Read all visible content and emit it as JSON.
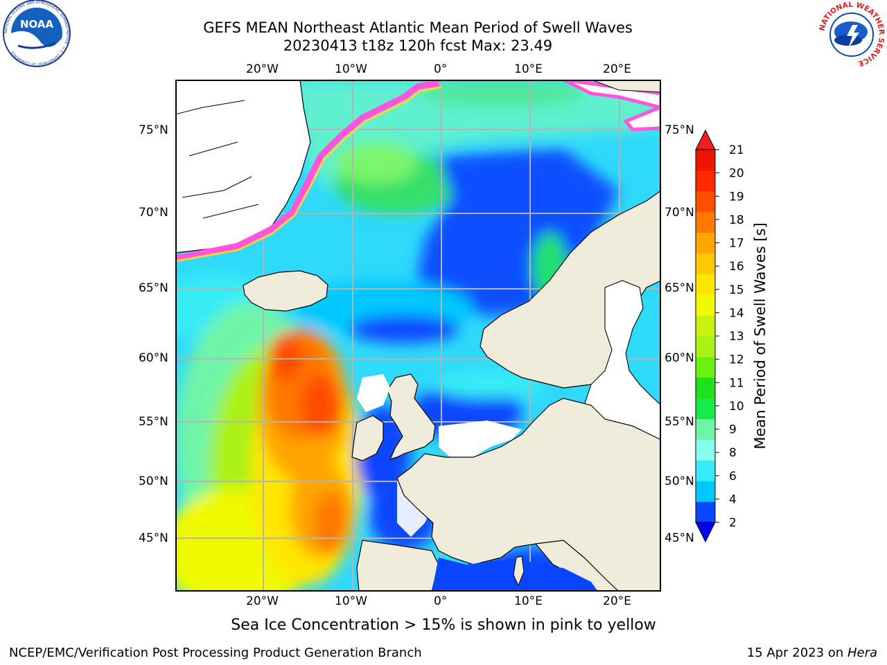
{
  "header": {
    "title": "GEFS MEAN Northeast Atlantic Mean Period of Swell Waves",
    "subtitle": "20230413 t18z 120h fcst   Max: 23.49"
  },
  "logos": {
    "noaa": "NOAA",
    "nws": "NATIONAL WEATHER SERVICE",
    "noaa_ring": "NATIONAL OCEANIC AND ATMOSPHERIC ADMINISTRATION · U.S. DEPARTMENT OF COMMERCE"
  },
  "map": {
    "lon_labels": [
      "20°W",
      "10°W",
      "0°",
      "10°E",
      "20°E"
    ],
    "lat_labels": [
      "75°N",
      "70°N",
      "65°N",
      "60°N",
      "55°N",
      "50°N",
      "45°N"
    ],
    "colors": {
      "land": "#efecdc",
      "coast": "#000000",
      "grid": "#b4b4b4",
      "ice_pink": "#ff55dd",
      "ice_yellow": "#ffd23c"
    }
  },
  "colorbar": {
    "label": "Mean Period of Swell Waves [s]",
    "ticks": [
      "2",
      "4",
      "6",
      "8",
      "9",
      "10",
      "11",
      "12",
      "13",
      "14",
      "15",
      "16",
      "17",
      "18",
      "19",
      "20",
      "21"
    ],
    "colors": [
      "#0a46ff",
      "#00c8ff",
      "#37ecf6",
      "#87ffee",
      "#70f5a8",
      "#18ec4a",
      "#20e01c",
      "#6cf010",
      "#aaf214",
      "#c8f20e",
      "#f0fa00",
      "#ffe600",
      "#ffc800",
      "#ffa500",
      "#ff7800",
      "#ff4e00",
      "#ff2800",
      "#f01400"
    ],
    "extend_low_color": "#0000f0",
    "extend_high_color": "#f01e1e"
  },
  "footer": {
    "note": "Sea Ice Concentration > 15% is shown in pink to yellow",
    "credit": "NCEP/EMC/Verification Post Processing Product Generation Branch",
    "date": "15 Apr 2023 on",
    "machine": "Hera"
  }
}
